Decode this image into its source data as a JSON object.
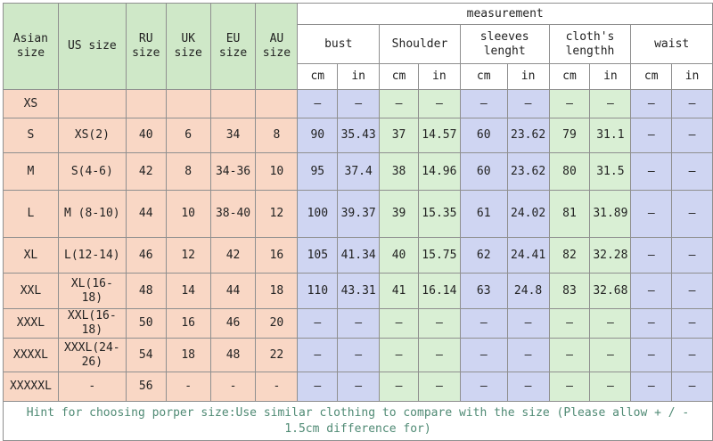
{
  "header": {
    "asian_size": "Asian size",
    "us_size": "US size",
    "ru_size": "RU size",
    "uk_size": "UK size",
    "eu_size": "EU size",
    "au_size": "AU size",
    "measurement": "measurement",
    "groups": [
      "bust",
      "Shoulder",
      "sleeves lenght",
      "cloth's lengthh",
      "waist"
    ],
    "units": [
      "cm",
      "in",
      "cm",
      "in",
      "cm",
      "in",
      "cm",
      "in",
      "cm",
      "in"
    ]
  },
  "rows": [
    {
      "asian": "XS",
      "us": "",
      "ru": "",
      "uk": "",
      "eu": "",
      "au": "",
      "bust_cm": "—",
      "bust_in": "—",
      "shoulder_cm": "—",
      "shoulder_in": "—",
      "sleeves_cm": "—",
      "sleeves_in": "—",
      "length_cm": "—",
      "length_in": "—",
      "waist_cm": "—",
      "waist_in": "—"
    },
    {
      "asian": "S",
      "us": "XS(2)",
      "ru": "40",
      "uk": "6",
      "eu": "34",
      "au": "8",
      "bust_cm": "90",
      "bust_in": "35.43",
      "shoulder_cm": "37",
      "shoulder_in": "14.57",
      "sleeves_cm": "60",
      "sleeves_in": "23.62",
      "length_cm": "79",
      "length_in": "31.1",
      "waist_cm": "—",
      "waist_in": "—"
    },
    {
      "asian": "M",
      "us": "S(4-6)",
      "ru": "42",
      "uk": "8",
      "eu": "34-36",
      "au": "10",
      "bust_cm": "95",
      "bust_in": "37.4",
      "shoulder_cm": "38",
      "shoulder_in": "14.96",
      "sleeves_cm": "60",
      "sleeves_in": "23.62",
      "length_cm": "80",
      "length_in": "31.5",
      "waist_cm": "—",
      "waist_in": "—"
    },
    {
      "asian": "L",
      "us": "M (8-10)",
      "ru": "44",
      "uk": "10",
      "eu": "38-40",
      "au": "12",
      "bust_cm": "100",
      "bust_in": "39.37",
      "shoulder_cm": "39",
      "shoulder_in": "15.35",
      "sleeves_cm": "61",
      "sleeves_in": "24.02",
      "length_cm": "81",
      "length_in": "31.89",
      "waist_cm": "—",
      "waist_in": "—"
    },
    {
      "asian": "XL",
      "us": "L(12-14)",
      "ru": "46",
      "uk": "12",
      "eu": "42",
      "au": "16",
      "bust_cm": "105",
      "bust_in": "41.34",
      "shoulder_cm": "40",
      "shoulder_in": "15.75",
      "sleeves_cm": "62",
      "sleeves_in": "24.41",
      "length_cm": "82",
      "length_in": "32.28",
      "waist_cm": "—",
      "waist_in": "—"
    },
    {
      "asian": "XXL",
      "us": "XL(16-18)",
      "ru": "48",
      "uk": "14",
      "eu": "44",
      "au": "18",
      "bust_cm": "110",
      "bust_in": "43.31",
      "shoulder_cm": "41",
      "shoulder_in": "16.14",
      "sleeves_cm": "63",
      "sleeves_in": "24.8",
      "length_cm": "83",
      "length_in": "32.68",
      "waist_cm": "—",
      "waist_in": "—"
    },
    {
      "asian": "XXXL",
      "us": "XXL(16-18)",
      "ru": "50",
      "uk": "16",
      "eu": "46",
      "au": "20",
      "bust_cm": "—",
      "bust_in": "—",
      "shoulder_cm": "—",
      "shoulder_in": "—",
      "sleeves_cm": "—",
      "sleeves_in": "—",
      "length_cm": "—",
      "length_in": "—",
      "waist_cm": "—",
      "waist_in": "—"
    },
    {
      "asian": "XXXXL",
      "us": "XXXL(24-26)",
      "ru": "54",
      "uk": "18",
      "eu": "48",
      "au": "22",
      "bust_cm": "—",
      "bust_in": "—",
      "shoulder_cm": "—",
      "shoulder_in": "—",
      "sleeves_cm": "—",
      "sleeves_in": "—",
      "length_cm": "—",
      "length_in": "—",
      "waist_cm": "—",
      "waist_in": "—"
    },
    {
      "asian": "XXXXXL",
      "us": "-",
      "ru": "56",
      "uk": "-",
      "eu": "-",
      "au": "-",
      "bust_cm": "—",
      "bust_in": "—",
      "shoulder_cm": "—",
      "shoulder_in": "—",
      "sleeves_cm": "—",
      "sleeves_in": "—",
      "length_cm": "—",
      "length_in": "—",
      "waist_cm": "—",
      "waist_in": "—"
    }
  ],
  "hint": "Hint for choosing porper size:Use similar clothing to compare with the size (Please allow + / - 1.5cm difference for)",
  "colors": {
    "header_green": "#cfe8c8",
    "size_peach": "#f9d7c5",
    "measure_blue": "#cfd5f2",
    "measure_green": "#d9efd4",
    "hint_text": "#4f8a74",
    "grid": "#8f8f8f"
  }
}
